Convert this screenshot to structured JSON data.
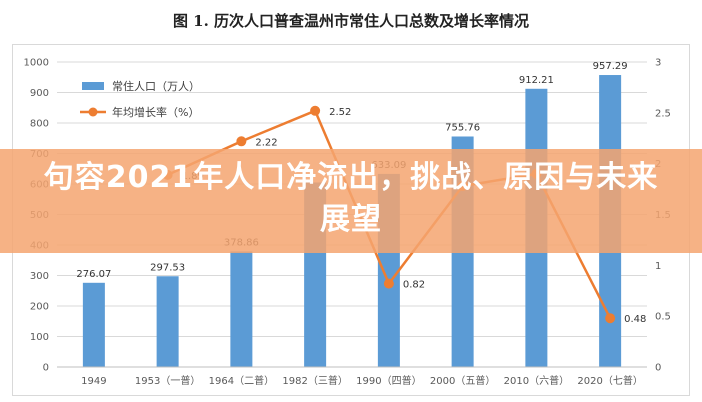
{
  "title": "图 1. 历次人口普查温州市常住人口总数及增长率情况",
  "banner": {
    "text": "句容2021年人口净流出，挑战、原因与未来展望"
  },
  "chart_data": {
    "type": "bar+line",
    "categories": [
      "1949",
      "1953（一普）",
      "1964（二普）",
      "1982（三普）",
      "1990（四普）",
      "2000（五普）",
      "2010（六普）",
      "2020（七普）"
    ],
    "series": [
      {
        "name": "常住人口（万人）",
        "type": "bar",
        "axis": "left",
        "color": "#5b9bd5",
        "values": [
          276.07,
          297.53,
          378.86,
          605,
          633.09,
          755.76,
          912.21,
          957.29
        ],
        "labels": [
          "276.07",
          "297.53",
          "378.86",
          "",
          "633.09",
          "755.76",
          "912.21",
          "957.29"
        ]
      },
      {
        "name": "年均增长率（%）",
        "type": "line",
        "axis": "right",
        "color": "#ed7d31",
        "values": [
          null,
          1.89,
          2.22,
          2.52,
          0.82,
          1.78,
          1.9,
          0.48
        ],
        "labels": [
          "",
          "1.89",
          "2.22",
          "2.52",
          "0.82",
          "",
          "",
          "0.48"
        ]
      }
    ],
    "left_axis": {
      "range": [
        0,
        1000
      ],
      "ticks": [
        "0",
        "100",
        "200",
        "300",
        "400",
        "500",
        "600",
        "700",
        "800",
        "900",
        "1000"
      ]
    },
    "right_axis": {
      "range": [
        0,
        3
      ],
      "ticks": [
        "0",
        "0.5",
        "1",
        "1.5",
        "2",
        "2.5",
        "3"
      ]
    },
    "grid": true,
    "legend": "top-left"
  }
}
